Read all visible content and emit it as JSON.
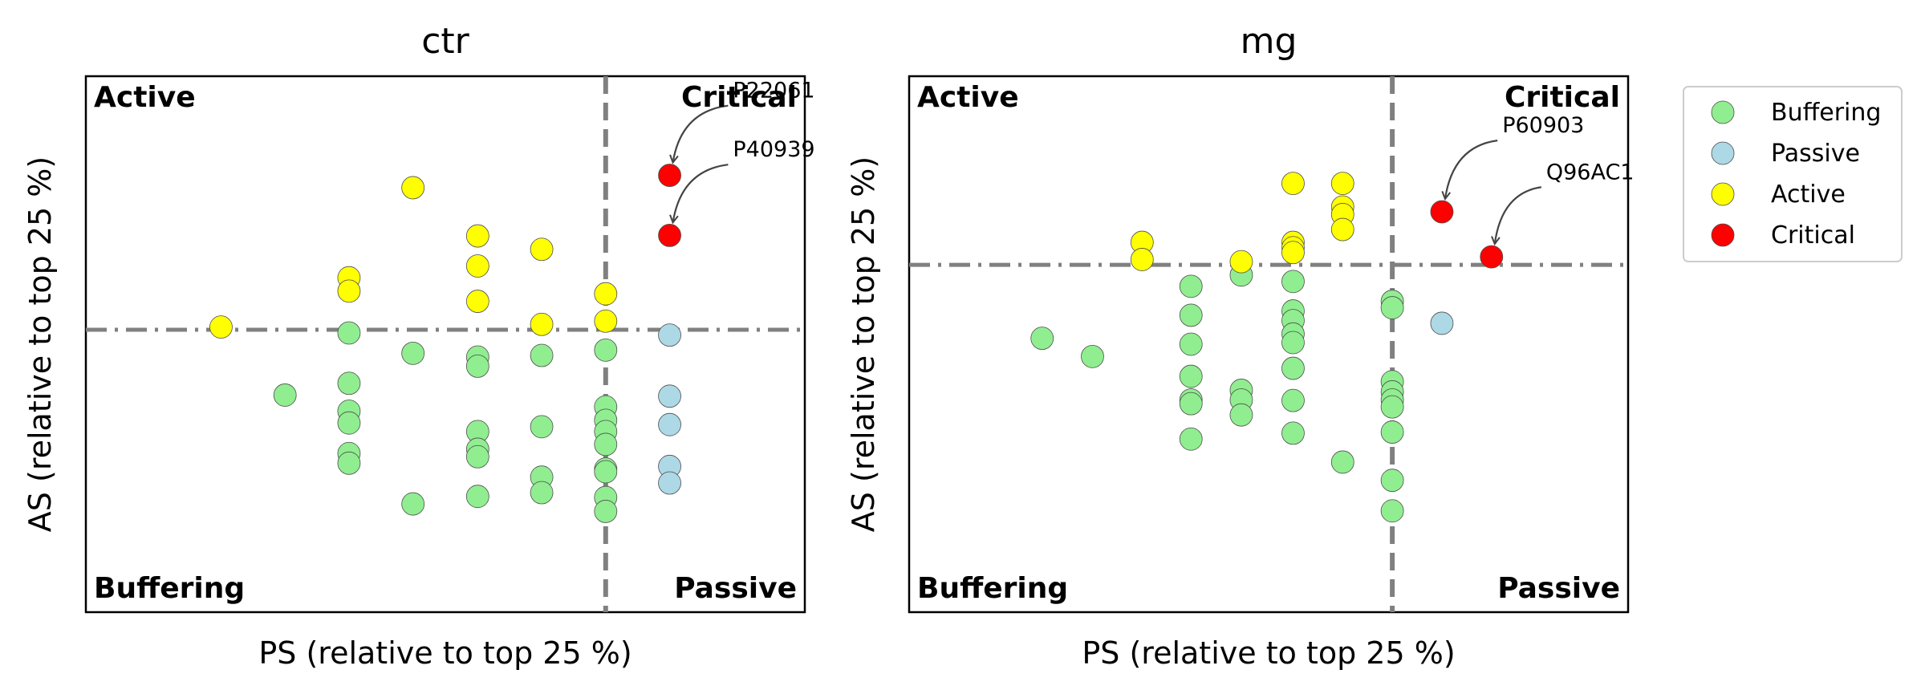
{
  "colors": {
    "Buffering": "#90ee90",
    "Passive": "#add8e6",
    "Active": "#ffff00",
    "Critical": "#ff0000",
    "threshold_line": "#808080",
    "axes": "#000000"
  },
  "legend": {
    "placement": "outside-right",
    "items": [
      {
        "label": "Buffering",
        "color": "#90ee90"
      },
      {
        "label": "Passive",
        "color": "#add8e6"
      },
      {
        "label": "Active",
        "color": "#ffff00"
      },
      {
        "label": "Critical",
        "color": "#ff0000"
      }
    ]
  },
  "chart_data": [
    {
      "type": "scatter",
      "title": "ctr",
      "xlabel": "PS (relative to top 25 %)",
      "ylabel": "AS (relative to top 25 %)",
      "xlim": [
        0,
        1
      ],
      "ylim": [
        0,
        1
      ],
      "grid": false,
      "ticks_visible": false,
      "quadrant_labels": {
        "top_left": "Active",
        "top_right": "Critical",
        "bottom_left": "Buffering",
        "bottom_right": "Passive"
      },
      "thresholds": {
        "x": 0.723,
        "y": 0.527
      },
      "series": [
        {
          "name": "Buffering",
          "points": [
            [
              0.277,
              0.405
            ],
            [
              0.366,
              0.521
            ],
            [
              0.366,
              0.427
            ],
            [
              0.366,
              0.375
            ],
            [
              0.366,
              0.353
            ],
            [
              0.366,
              0.296
            ],
            [
              0.366,
              0.278
            ],
            [
              0.455,
              0.483
            ],
            [
              0.455,
              0.202
            ],
            [
              0.545,
              0.476
            ],
            [
              0.545,
              0.459
            ],
            [
              0.545,
              0.337
            ],
            [
              0.545,
              0.304
            ],
            [
              0.545,
              0.29
            ],
            [
              0.545,
              0.216
            ],
            [
              0.634,
              0.479
            ],
            [
              0.634,
              0.346
            ],
            [
              0.634,
              0.252
            ],
            [
              0.634,
              0.223
            ],
            [
              0.723,
              0.489
            ],
            [
              0.723,
              0.383
            ],
            [
              0.723,
              0.358
            ],
            [
              0.723,
              0.337
            ],
            [
              0.723,
              0.313
            ],
            [
              0.723,
              0.267
            ],
            [
              0.723,
              0.262
            ],
            [
              0.723,
              0.214
            ],
            [
              0.723,
              0.188
            ]
          ]
        },
        {
          "name": "Passive",
          "points": [
            [
              0.812,
              0.517
            ],
            [
              0.812,
              0.403
            ],
            [
              0.812,
              0.35
            ],
            [
              0.812,
              0.272
            ],
            [
              0.812,
              0.241
            ]
          ]
        },
        {
          "name": "Active",
          "points": [
            [
              0.188,
              0.532
            ],
            [
              0.366,
              0.624
            ],
            [
              0.366,
              0.599
            ],
            [
              0.455,
              0.792
            ],
            [
              0.545,
              0.702
            ],
            [
              0.545,
              0.646
            ],
            [
              0.545,
              0.58
            ],
            [
              0.634,
              0.677
            ],
            [
              0.634,
              0.537
            ],
            [
              0.723,
              0.594
            ],
            [
              0.723,
              0.543
            ]
          ]
        },
        {
          "name": "Critical",
          "points": [
            [
              0.812,
              0.815
            ],
            [
              0.812,
              0.703
            ]
          ]
        }
      ],
      "annotations": [
        {
          "text": "P22061",
          "point": [
            0.812,
            0.815
          ],
          "text_pos": [
            0.9,
            0.96
          ]
        },
        {
          "text": "P40939",
          "point": [
            0.812,
            0.703
          ],
          "text_pos": [
            0.9,
            0.85
          ]
        }
      ]
    },
    {
      "type": "scatter",
      "title": "mg",
      "xlabel": "PS (relative to top 25 %)",
      "ylabel": "AS (relative to top 25 %)",
      "xlim": [
        0,
        1
      ],
      "ylim": [
        0,
        1
      ],
      "grid": false,
      "ticks_visible": false,
      "quadrant_labels": {
        "top_left": "Active",
        "top_right": "Critical",
        "bottom_left": "Buffering",
        "bottom_right": "Passive"
      },
      "thresholds": {
        "x": 0.672,
        "y": 0.648
      },
      "series": [
        {
          "name": "Buffering",
          "points": [
            [
              0.185,
              0.511
            ],
            [
              0.255,
              0.477
            ],
            [
              0.392,
              0.608
            ],
            [
              0.392,
              0.554
            ],
            [
              0.392,
              0.5
            ],
            [
              0.392,
              0.44
            ],
            [
              0.392,
              0.396
            ],
            [
              0.392,
              0.389
            ],
            [
              0.392,
              0.323
            ],
            [
              0.462,
              0.629
            ],
            [
              0.462,
              0.414
            ],
            [
              0.462,
              0.396
            ],
            [
              0.462,
              0.368
            ],
            [
              0.534,
              0.617
            ],
            [
              0.534,
              0.562
            ],
            [
              0.534,
              0.544
            ],
            [
              0.534,
              0.519
            ],
            [
              0.534,
              0.503
            ],
            [
              0.534,
              0.455
            ],
            [
              0.534,
              0.395
            ],
            [
              0.534,
              0.334
            ],
            [
              0.603,
              0.28
            ],
            [
              0.672,
              0.58
            ],
            [
              0.672,
              0.568
            ],
            [
              0.672,
              0.43
            ],
            [
              0.672,
              0.411
            ],
            [
              0.672,
              0.396
            ],
            [
              0.672,
              0.383
            ],
            [
              0.672,
              0.336
            ],
            [
              0.672,
              0.246
            ],
            [
              0.672,
              0.189
            ]
          ]
        },
        {
          "name": "Passive",
          "points": [
            [
              0.741,
              0.539
            ]
          ]
        },
        {
          "name": "Active",
          "points": [
            [
              0.324,
              0.69
            ],
            [
              0.324,
              0.658
            ],
            [
              0.462,
              0.654
            ],
            [
              0.534,
              0.8
            ],
            [
              0.534,
              0.69
            ],
            [
              0.534,
              0.68
            ],
            [
              0.534,
              0.671
            ],
            [
              0.603,
              0.8
            ],
            [
              0.603,
              0.756
            ],
            [
              0.603,
              0.742
            ],
            [
              0.603,
              0.714
            ]
          ]
        },
        {
          "name": "Critical",
          "points": [
            [
              0.741,
              0.747
            ],
            [
              0.81,
              0.663
            ]
          ]
        }
      ],
      "annotations": [
        {
          "text": "P60903",
          "point": [
            0.741,
            0.747
          ],
          "text_pos": [
            0.825,
            0.895
          ]
        },
        {
          "text": "Q96AC1",
          "point": [
            0.81,
            0.663
          ],
          "text_pos": [
            0.886,
            0.808
          ]
        }
      ]
    }
  ]
}
